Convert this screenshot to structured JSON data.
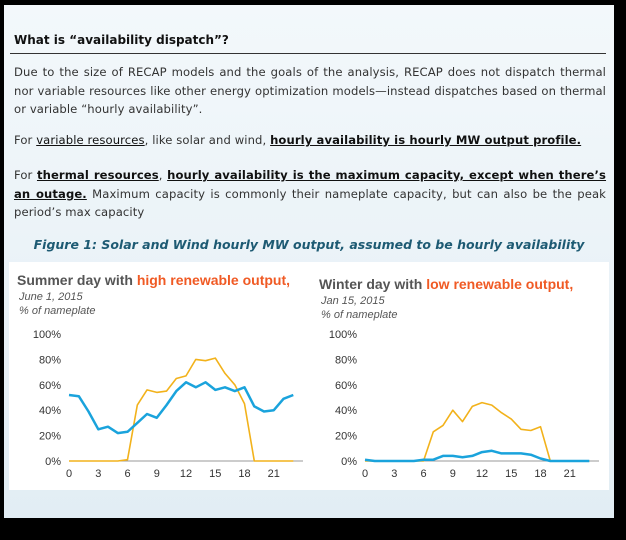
{
  "heading": "What is “availability dispatch”?",
  "paragraphs": {
    "p1": "Due to the size of RECAP models and the goals of the analysis, RECAP does not dispatch thermal nor variable resources like other energy optimization models—instead dispatches based on thermal or variable “hourly availability”.",
    "p2_a": "For ",
    "p2_b": "variable resources",
    "p2_c": ", like solar and wind, ",
    "p2_d": "hourly availability is hourly MW output profile.",
    "p3_a": "For ",
    "p3_b": "thermal resources",
    "p3_c": ", ",
    "p3_d": "hourly availability is the maximum capacity, except when there’s an outage.",
    "p3_e": " Maximum capacity is commonly their nameplate capacity, but can also be the peak period’s max capacity"
  },
  "figure_caption": "Figure 1: Solar and Wind hourly MW output, assumed to be hourly availability",
  "charts": [
    {
      "title_a": "Summer day with ",
      "title_b": "high renewable output,",
      "date": "June 1, 2015",
      "unit": "% of nameplate"
    },
    {
      "title_a": "Winter day with ",
      "title_b": "low renewable output,",
      "date": "Jan 15, 2015",
      "unit": "% of nameplate"
    }
  ],
  "colors": {
    "solar": "#f2b21b",
    "wind": "#1aa3dc",
    "highlight": "#f05a24",
    "caption": "#1d5a73"
  },
  "chart_data": [
    {
      "type": "line",
      "title": "Summer day with high renewable output,",
      "subtitle": "June 1, 2015 — % of nameplate",
      "x": [
        0,
        1,
        2,
        3,
        4,
        5,
        6,
        7,
        8,
        9,
        10,
        11,
        12,
        13,
        14,
        15,
        16,
        17,
        18,
        19,
        20,
        21,
        22,
        23
      ],
      "xticks": [
        0,
        3,
        6,
        9,
        12,
        15,
        18,
        21
      ],
      "yticks": [
        "0%",
        "20%",
        "40%",
        "60%",
        "80%",
        "100%"
      ],
      "ylim": [
        0,
        100
      ],
      "series": [
        {
          "color": "#f2b21b",
          "values": [
            0,
            0,
            0,
            0,
            0,
            0,
            1,
            44,
            56,
            54,
            55,
            65,
            67,
            80,
            79,
            81,
            69,
            60,
            45,
            0,
            0,
            0,
            0,
            0
          ]
        },
        {
          "color": "#1aa3dc",
          "values": [
            52,
            51,
            39,
            25,
            27,
            22,
            23,
            30,
            37,
            34,
            44,
            55,
            62,
            58,
            62,
            56,
            58,
            55,
            58,
            43,
            39,
            40,
            49,
            52
          ]
        }
      ]
    },
    {
      "type": "line",
      "title": "Winter day with low renewable output,",
      "subtitle": "Jan 15, 2015 — % of nameplate",
      "x": [
        0,
        1,
        2,
        3,
        4,
        5,
        6,
        7,
        8,
        9,
        10,
        11,
        12,
        13,
        14,
        15,
        16,
        17,
        18,
        19,
        20,
        21,
        22,
        23
      ],
      "xticks": [
        0,
        3,
        6,
        9,
        12,
        15,
        18,
        21
      ],
      "yticks": [
        "0%",
        "20%",
        "40%",
        "60%",
        "80%",
        "100%"
      ],
      "ylim": [
        0,
        100
      ],
      "series": [
        {
          "color": "#f2b21b",
          "values": [
            0,
            0,
            0,
            0,
            0,
            0,
            0,
            23,
            28,
            40,
            31,
            43,
            46,
            44,
            38,
            33,
            25,
            24,
            27,
            0,
            0,
            0,
            0,
            0
          ]
        },
        {
          "color": "#1aa3dc",
          "values": [
            1,
            0,
            0,
            0,
            0,
            0,
            1,
            1,
            4,
            4,
            3,
            4,
            7,
            8,
            6,
            6,
            6,
            5,
            2,
            0,
            0,
            0,
            0,
            0
          ]
        }
      ]
    }
  ]
}
